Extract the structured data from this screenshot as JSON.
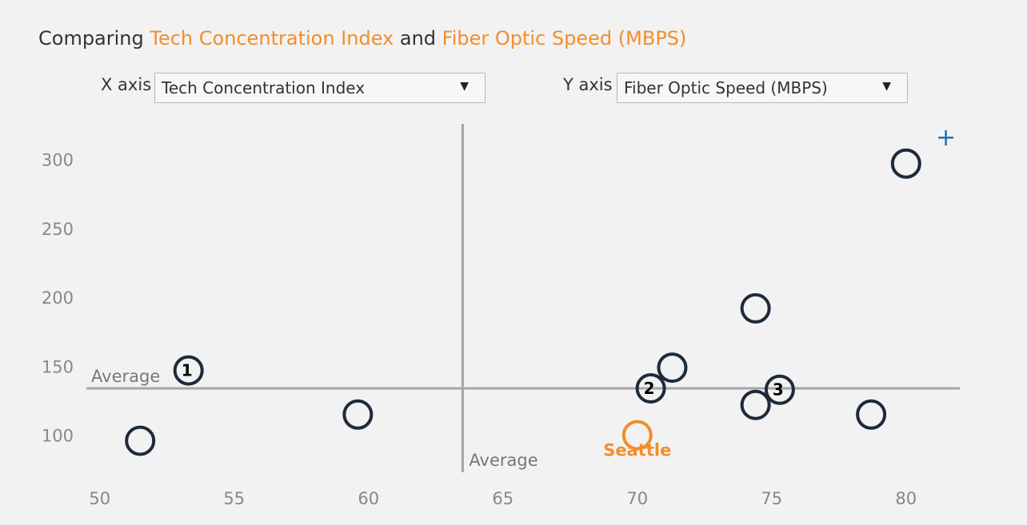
{
  "title": {
    "prefix": "Comparing ",
    "x_metric": "Tech Concentration Index",
    "joiner": " and ",
    "y_metric": "Fiber Optic Speed (MBPS)"
  },
  "controls": {
    "x_label": "X axis",
    "x_value": "Tech Concentration Index",
    "y_label": "Y axis",
    "y_value": "Fiber Optic Speed (MBPS)"
  },
  "icons": {
    "add": "plus-icon",
    "dropdown": "triangle-down-icon"
  },
  "colors": {
    "point": "#1e2a3a",
    "highlight": "#f28e2b",
    "reference": "#a6a6a6",
    "plus": "#1f6fb4"
  },
  "chart_data": {
    "type": "scatter",
    "xlim": [
      49.5,
      82
    ],
    "ylim": [
      72,
      320
    ],
    "x_ticks": [
      50,
      55,
      60,
      65,
      70,
      75,
      80
    ],
    "y_ticks": [
      100,
      150,
      200,
      250,
      300
    ],
    "average_label": "Average",
    "average_x": 63.5,
    "average_y": 134,
    "points": [
      {
        "x": 51.5,
        "y": 96
      },
      {
        "x": 53.3,
        "y": 147,
        "label": "1"
      },
      {
        "x": 59.6,
        "y": 115
      },
      {
        "x": 70.5,
        "y": 134,
        "label": "2"
      },
      {
        "x": 71.3,
        "y": 149
      },
      {
        "x": 74.4,
        "y": 192
      },
      {
        "x": 74.4,
        "y": 122
      },
      {
        "x": 75.3,
        "y": 133,
        "label": "3"
      },
      {
        "x": 78.7,
        "y": 115
      },
      {
        "x": 80.0,
        "y": 297
      }
    ],
    "highlight": {
      "x": 70.0,
      "y": 100,
      "label": "Seattle"
    }
  }
}
